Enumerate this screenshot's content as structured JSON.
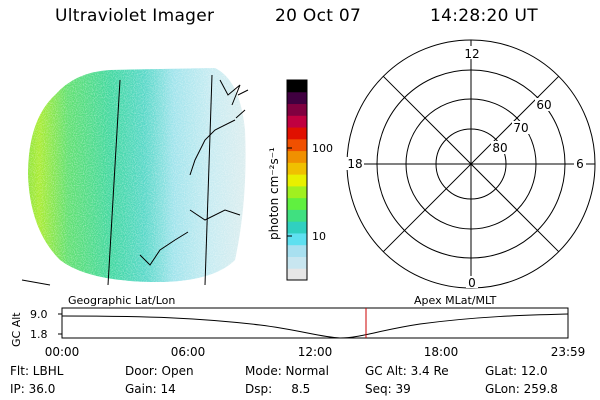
{
  "header": {
    "title": "Ultraviolet Imager",
    "date": "20 Oct 07",
    "time": "14:28:20 UT"
  },
  "colorbar": {
    "unit_label": "photon cm⁻²s⁻¹",
    "tick_labels": [
      "100",
      "10"
    ],
    "colors": [
      "#e6e6e6",
      "#c8e6f0",
      "#a8e0f0",
      "#5ee0f0",
      "#30d0c0",
      "#40e080",
      "#60f040",
      "#a0f020",
      "#e8f000",
      "#f0c000",
      "#f09000",
      "#f05000",
      "#e01000",
      "#c00040",
      "#800040",
      "#400040",
      "#000000"
    ]
  },
  "image_panel": {
    "label": "Geographic Lat/Lon"
  },
  "polar_plot": {
    "label": "Apex MLat/MLT",
    "mlt_labels": {
      "top": "12",
      "left": "18",
      "right": "6",
      "bottom": "0"
    },
    "lat_labels": [
      "60",
      "70",
      "80"
    ]
  },
  "timeline": {
    "ylabel": "GC Alt",
    "y_ticks": [
      "9.0",
      "1.8"
    ],
    "x_ticks": [
      "00:00",
      "06:00",
      "12:00",
      "18:00",
      "23:59"
    ],
    "current_time_marker": "14:28:20"
  },
  "info": {
    "row1": {
      "flt": "Flt: LBHL",
      "door": "Door: Open",
      "mode": "Mode: Normal",
      "gc_alt": "GC Alt: 3.4 Re",
      "glat": "GLat:  12.0"
    },
    "row2": {
      "ip": "IP: 36.0",
      "gain": "Gain: 14",
      "dsp": "Dsp:     8.5",
      "seq": "Seq: 39",
      "glon": "GLon: 259.8"
    }
  }
}
